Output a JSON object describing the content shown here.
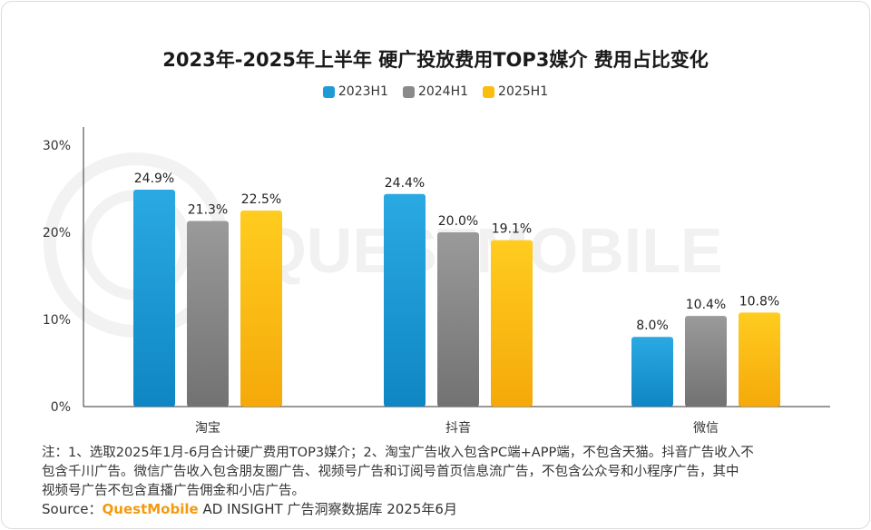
{
  "chart_data": {
    "type": "bar",
    "title": "2023年-2025年上半年 硬广投放费用TOP3媒介 费用占比变化",
    "categories": [
      "淘宝",
      "抖音",
      "微信"
    ],
    "series": [
      {
        "name": "2023H1",
        "values": [
          24.9,
          24.4,
          8.0
        ],
        "labels": [
          "24.9%",
          "24.4%",
          "8.0%"
        ]
      },
      {
        "name": "2024H1",
        "values": [
          21.3,
          20.0,
          10.4
        ],
        "labels": [
          "21.3%",
          "20.0%",
          "10.4%"
        ]
      },
      {
        "name": "2025H1",
        "values": [
          22.5,
          19.1,
          10.8
        ],
        "labels": [
          "22.5%",
          "19.1%",
          "10.8%"
        ]
      }
    ],
    "y_ticks": [
      "0%",
      "10%",
      "20%",
      "30%"
    ],
    "ylim": [
      0,
      30
    ],
    "legend_position": "top-center",
    "colors": {
      "2023H1": "#1e9bd7",
      "2024H1": "#8a8a8a",
      "2025H1": "#fbbd12"
    }
  },
  "notes": [
    "注：1、选取2025年1月-6月合计硬广费用TOP3媒介；2、淘宝广告收入包含PC端+APP端，不包含天猫。抖音广告收入不",
    "包含千川广告。微信广告收入包含朋友圈广告、视频号广告和订阅号首页信息流广告，不包含公众号和小程序广告，其中",
    "视频号广告不包含直播广告佣金和小店广告。"
  ],
  "source": {
    "prefix": "Source：",
    "brand": "QuestMobile",
    "suffix": "AD INSIGHT 广告洞察数据库 2025年6月"
  },
  "watermark": "QUESTMOBILE"
}
